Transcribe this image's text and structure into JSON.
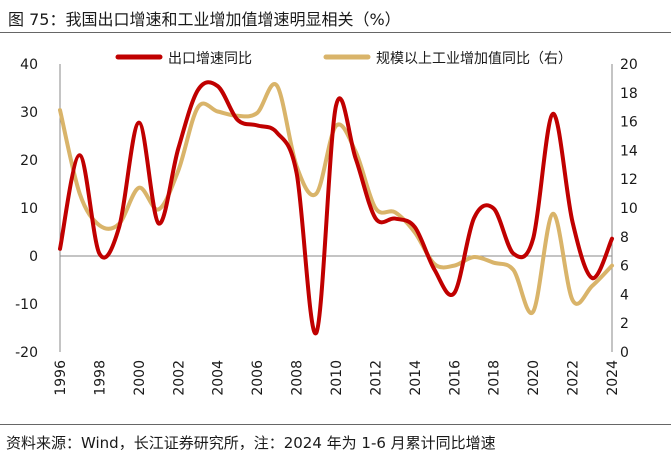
{
  "title": "图 75：我国出口增速和工业增加值增速明显相关（%）",
  "source": "资料来源：Wind，长江证券研究所，注：2024 年为 1-6 月累计同比增速",
  "chart_data": {
    "type": "line",
    "x": [
      1996,
      1997,
      1998,
      1999,
      2000,
      2001,
      2002,
      2003,
      2004,
      2005,
      2006,
      2007,
      2008,
      2009,
      2010,
      2011,
      2012,
      2013,
      2014,
      2015,
      2016,
      2017,
      2018,
      2019,
      2020,
      2021,
      2022,
      2023,
      2024
    ],
    "x_tick_labels": [
      "1996",
      "1998",
      "2000",
      "2002",
      "2004",
      "2006",
      "2008",
      "2010",
      "2012",
      "2014",
      "2016",
      "2018",
      "2020",
      "2022",
      "2024"
    ],
    "y_left_ticks": [
      "40",
      "30",
      "20",
      "10",
      "0",
      "-10",
      "-20"
    ],
    "y_right_ticks": [
      "20",
      "18",
      "16",
      "14",
      "12",
      "10",
      "8",
      "6",
      "4",
      "2",
      "0"
    ],
    "y_left_lim": [
      -20,
      40
    ],
    "y_right_lim": [
      0,
      20
    ],
    "series": [
      {
        "name": "出口增速同比",
        "axis": "left",
        "color": "#c00000",
        "values": [
          1.5,
          21,
          0.5,
          6,
          27.8,
          6.8,
          22.4,
          34.6,
          35.4,
          28.4,
          27.2,
          25.7,
          17.3,
          -16,
          31.3,
          20.3,
          7.9,
          7.8,
          6.0,
          -2.9,
          -7.7,
          7.9,
          9.9,
          0.5,
          3.6,
          29.6,
          7.0,
          -4.6,
          3.6
        ]
      },
      {
        "name": "规模以上工业增加值同比（右）",
        "axis": "right",
        "color": "#d9b46a",
        "values": [
          16.8,
          11.0,
          8.8,
          8.9,
          11.4,
          9.9,
          12.6,
          17.0,
          16.7,
          16.4,
          16.6,
          18.5,
          12.9,
          11.0,
          15.7,
          13.9,
          10.0,
          9.7,
          8.3,
          6.1,
          6.0,
          6.6,
          6.2,
          5.7,
          2.8,
          9.6,
          3.6,
          4.6,
          6.0
        ]
      }
    ],
    "legend_position": "top"
  }
}
